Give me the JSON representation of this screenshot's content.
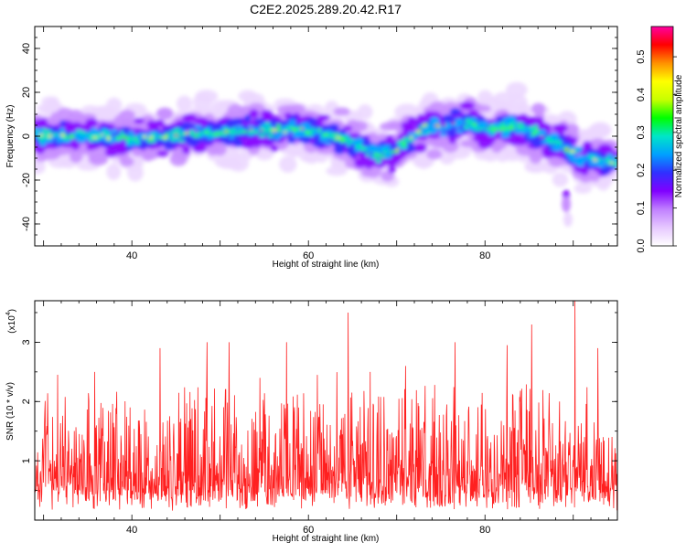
{
  "title": "C2E2.2025.289.20.42.R17",
  "chart_data": [
    {
      "type": "heatmap",
      "name": "spectrogram",
      "xlabel": "Height of straight line (km)",
      "ylabel": "Frequency (Hz)",
      "xlim": [
        29,
        95
      ],
      "ylim": [
        -50,
        50
      ],
      "xticks": [
        40,
        60,
        80
      ],
      "yticks": [
        -40,
        -20,
        0,
        20,
        40
      ],
      "colorbar": {
        "label": "Normalized spectral amplitude",
        "range": [
          0,
          0.58
        ],
        "ticks": [
          "0.0",
          "0.1",
          "0.2",
          "0.3",
          "0.4",
          "0.5"
        ],
        "tick_values": [
          0,
          0.1,
          0.2,
          0.3,
          0.4,
          0.5
        ],
        "colors": [
          "#ffffff",
          "#e6c8ff",
          "#c080ff",
          "#8000ff",
          "#3030ff",
          "#00a0ff",
          "#00e6c8",
          "#00ff00",
          "#c8ff00",
          "#ffff00",
          "#ff9000",
          "#ff0000",
          "#ff00a0"
        ]
      },
      "ridge": [
        [
          29,
          1
        ],
        [
          33,
          0
        ],
        [
          36,
          0
        ],
        [
          40,
          -1
        ],
        [
          45,
          0
        ],
        [
          50,
          2
        ],
        [
          55,
          3
        ],
        [
          60,
          3
        ],
        [
          63,
          0
        ],
        [
          66,
          -5
        ],
        [
          68,
          -9
        ],
        [
          70,
          -6
        ],
        [
          73,
          4
        ],
        [
          77,
          6
        ],
        [
          80,
          4
        ],
        [
          83,
          4
        ],
        [
          85,
          3
        ],
        [
          88,
          -3
        ],
        [
          91,
          -10
        ],
        [
          95,
          -12
        ]
      ]
    },
    {
      "type": "line",
      "name": "snr",
      "xlabel": "Height of straight line (km)",
      "ylabel": "SNR (10 * v/v)",
      "scale_label": "(x10",
      "scale_exp": "4",
      "scale_close": ")",
      "xlim": [
        29,
        95
      ],
      "ylim": [
        0,
        3.7
      ],
      "xticks": [
        40,
        60,
        80
      ],
      "yticks": [
        1,
        2,
        3
      ],
      "color": "#ff2020",
      "peaks": [
        [
          64.5,
          3.5
        ],
        [
          90.2,
          3.7
        ],
        [
          48.5,
          3.0
        ],
        [
          51.0,
          3.0
        ],
        [
          85.3,
          3.3
        ],
        [
          92.8,
          2.9
        ],
        [
          43.2,
          2.9
        ],
        [
          57.5,
          3.0
        ],
        [
          76.6,
          3.0
        ],
        [
          82.5,
          2.95
        ],
        [
          67.0,
          2.5
        ],
        [
          35.8,
          2.5
        ],
        [
          54.5,
          2.4
        ],
        [
          71.0,
          2.6
        ],
        [
          61.0,
          2.45
        ]
      ]
    }
  ]
}
